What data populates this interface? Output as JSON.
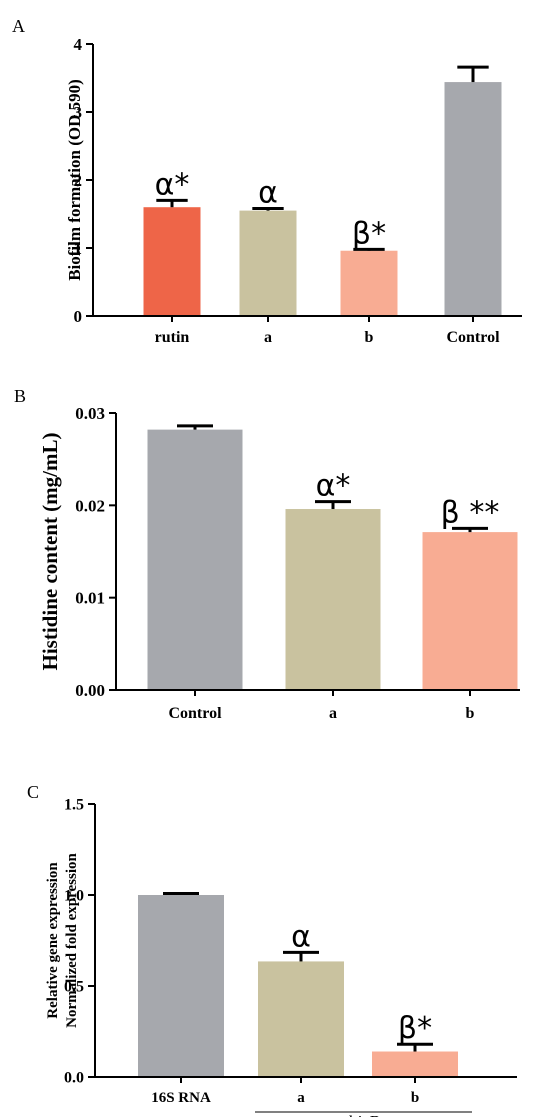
{
  "chart_data": [
    {
      "panel": "A",
      "type": "bar",
      "ylabel": "Biofilm formation (OD 590)",
      "xlabel": "",
      "categories": [
        "rutin",
        "a",
        "b",
        "Control"
      ],
      "values": [
        1.6,
        1.55,
        0.96,
        3.44
      ],
      "errors": [
        0.1,
        0.03,
        0.02,
        0.22
      ],
      "colors": [
        "#EE6548",
        "#C9C29F",
        "#F8AC93",
        "#A6A8AD"
      ],
      "significance": [
        "α*",
        "α",
        "β*",
        ""
      ],
      "ylim": [
        0,
        4
      ],
      "yticks": [
        "0",
        "1",
        "2",
        "3",
        "4"
      ]
    },
    {
      "panel": "B",
      "type": "bar",
      "ylabel": "Histidine content (mg/mL)",
      "xlabel": "",
      "categories": [
        "Control",
        "a",
        "b"
      ],
      "values": [
        0.0282,
        0.0196,
        0.0171
      ],
      "errors": [
        0.0004,
        0.0008,
        0.0004
      ],
      "colors": [
        "#A6A8AD",
        "#C9C29F",
        "#F8AC93"
      ],
      "significance": [
        "",
        "α*",
        "β **"
      ],
      "ylim": [
        0,
        0.03
      ],
      "yticks": [
        "0.00",
        "0.01",
        "0.02",
        "0.03"
      ]
    },
    {
      "panel": "C",
      "type": "bar",
      "ylabel": "Relative gene expression",
      "ylabel2": "Normalized fold expression",
      "xlabel": "",
      "categories": [
        "16S RNA",
        "a",
        "b"
      ],
      "values": [
        1.0,
        0.635,
        0.14
      ],
      "errors": [
        0.008,
        0.05,
        0.04
      ],
      "colors": [
        "#A6A8AD",
        "#C9C29F",
        "#F8AC93"
      ],
      "significance": [
        "",
        "α",
        "β*"
      ],
      "group_label": "hisB",
      "ylim": [
        0,
        1.5
      ],
      "yticks": [
        "0.0",
        "0.5",
        "1.0",
        "1.5"
      ]
    }
  ]
}
